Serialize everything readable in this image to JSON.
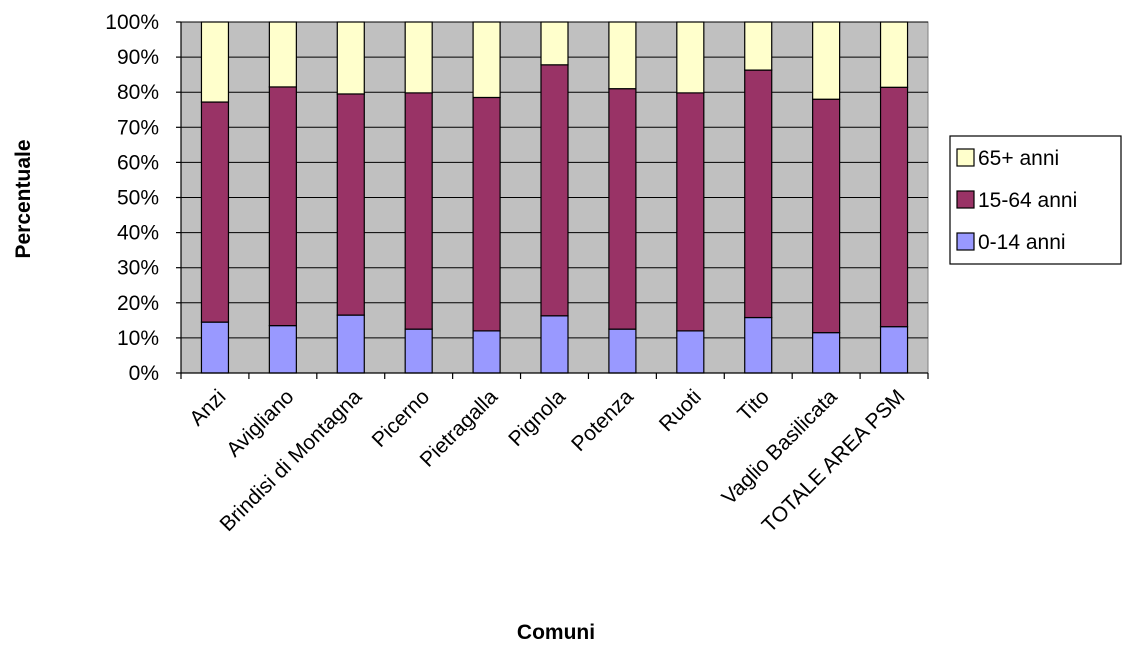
{
  "chart_data": {
    "type": "bar",
    "stacked": "percent",
    "categories": [
      "Anzi",
      "Avigliano",
      "Brindisi di Montagna",
      "Picerno",
      "Pietragalla",
      "Pignola",
      "Potenza",
      "Ruoti",
      "Tito",
      "Vaglio Basilicata",
      "TOTALE AREA PSM"
    ],
    "series": [
      {
        "name": "0-14 anni",
        "color": "#9999ff",
        "values": [
          14.5,
          13.5,
          16.5,
          12.5,
          12.0,
          16.3,
          12.5,
          12.0,
          15.8,
          11.5,
          13.2
        ]
      },
      {
        "name": "15-64 anni",
        "color": "#993366",
        "values": [
          62.7,
          68.0,
          63.0,
          67.3,
          66.5,
          71.5,
          68.5,
          67.8,
          70.5,
          66.5,
          68.2
        ]
      },
      {
        "name": "65+ anni",
        "color": "#ffffcc",
        "values": [
          22.8,
          18.5,
          20.5,
          20.2,
          21.5,
          12.2,
          19.0,
          20.2,
          13.7,
          22.0,
          18.6
        ]
      }
    ],
    "xlabel": "Comuni",
    "ylabel": "Percentuale",
    "ylim": [
      0,
      100
    ],
    "yticks": [
      "0%",
      "10%",
      "20%",
      "30%",
      "40%",
      "50%",
      "60%",
      "70%",
      "80%",
      "90%",
      "100%"
    ],
    "legend": {
      "position": "right",
      "order": [
        "65+ anni",
        "15-64 anni",
        "0-14 anni"
      ]
    },
    "grid": true,
    "plot_background": "#c0c0c0"
  }
}
